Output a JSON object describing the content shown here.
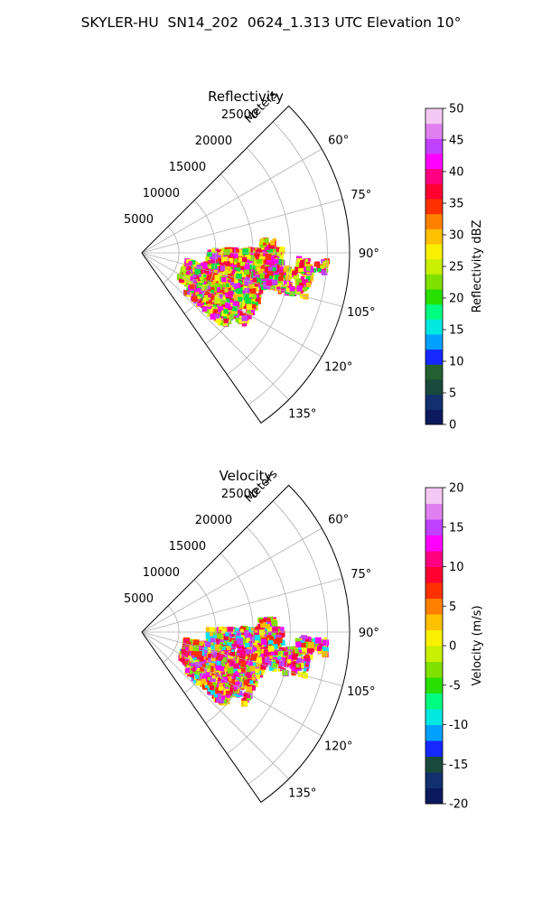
{
  "title": "SKYLER-HU  SN14_202  0624_1.313 UTC Elevation 10°",
  "chart_data": [
    {
      "type": "polar-sector",
      "title": "Reflectivity",
      "radial_label": "Meters",
      "radial_ticks": [
        5000,
        10000,
        15000,
        20000,
        25000
      ],
      "rlim": [
        0,
        28000
      ],
      "azimuth_ticks": [
        "60°",
        "75°",
        "90°",
        "105°",
        "120°",
        "135°"
      ],
      "azimuth_tick_values": [
        60,
        75,
        90,
        105,
        120,
        135
      ],
      "azimuth_range": [
        45,
        145
      ],
      "grid": true,
      "colorbar": {
        "label": "Reflectivity dBZ",
        "ticks": [
          0,
          5,
          10,
          15,
          20,
          25,
          30,
          35,
          40,
          45,
          50
        ],
        "range": [
          0,
          50
        ],
        "colors": [
          "#0a1a5c",
          "#12306e",
          "#1a4a3c",
          "#236030",
          "#1428ff",
          "#00a0ff",
          "#00e8e0",
          "#00ff80",
          "#28e000",
          "#80e000",
          "#c8f000",
          "#f8f000",
          "#ffc000",
          "#ff8000",
          "#ff3000",
          "#ff0030",
          "#ff0080",
          "#ff00ff",
          "#c040ff",
          "#e080f0",
          "#f4c8f4"
        ]
      }
    },
    {
      "type": "polar-sector",
      "title": "Velocity",
      "radial_label": "Meters",
      "radial_ticks": [
        5000,
        10000,
        15000,
        20000,
        25000
      ],
      "rlim": [
        0,
        28000
      ],
      "azimuth_ticks": [
        "60°",
        "75°",
        "90°",
        "105°",
        "120°",
        "135°"
      ],
      "azimuth_tick_values": [
        60,
        75,
        90,
        105,
        120,
        135
      ],
      "azimuth_range": [
        45,
        145
      ],
      "grid": true,
      "colorbar": {
        "label": "Velocity (m/s)",
        "ticks": [
          -20,
          -15,
          -10,
          -5,
          0,
          5,
          10,
          15,
          20
        ],
        "range": [
          -20,
          20
        ],
        "colors": [
          "#0a1a5c",
          "#12306e",
          "#1a4a3c",
          "#1428ff",
          "#00a0ff",
          "#00e8e0",
          "#00ff80",
          "#28e000",
          "#80e000",
          "#c8f000",
          "#f8f000",
          "#ffc000",
          "#ff8000",
          "#ff3000",
          "#ff0030",
          "#ff0080",
          "#ff00ff",
          "#c040ff",
          "#e080f0",
          "#f4c8f4"
        ]
      }
    }
  ],
  "echo_colors": {
    "reflectivity": [
      "#ff00a0",
      "#ff0040",
      "#ff3000",
      "#ffff00",
      "#c8f000",
      "#80e000",
      "#ff00ff",
      "#c040ff",
      "#ffc000",
      "#00e040"
    ],
    "velocity": [
      "#ff0040",
      "#ff0080",
      "#ff00ff",
      "#c040ff",
      "#ffc000",
      "#ffff00",
      "#ff3000",
      "#80e000",
      "#00e0ff"
    ]
  }
}
